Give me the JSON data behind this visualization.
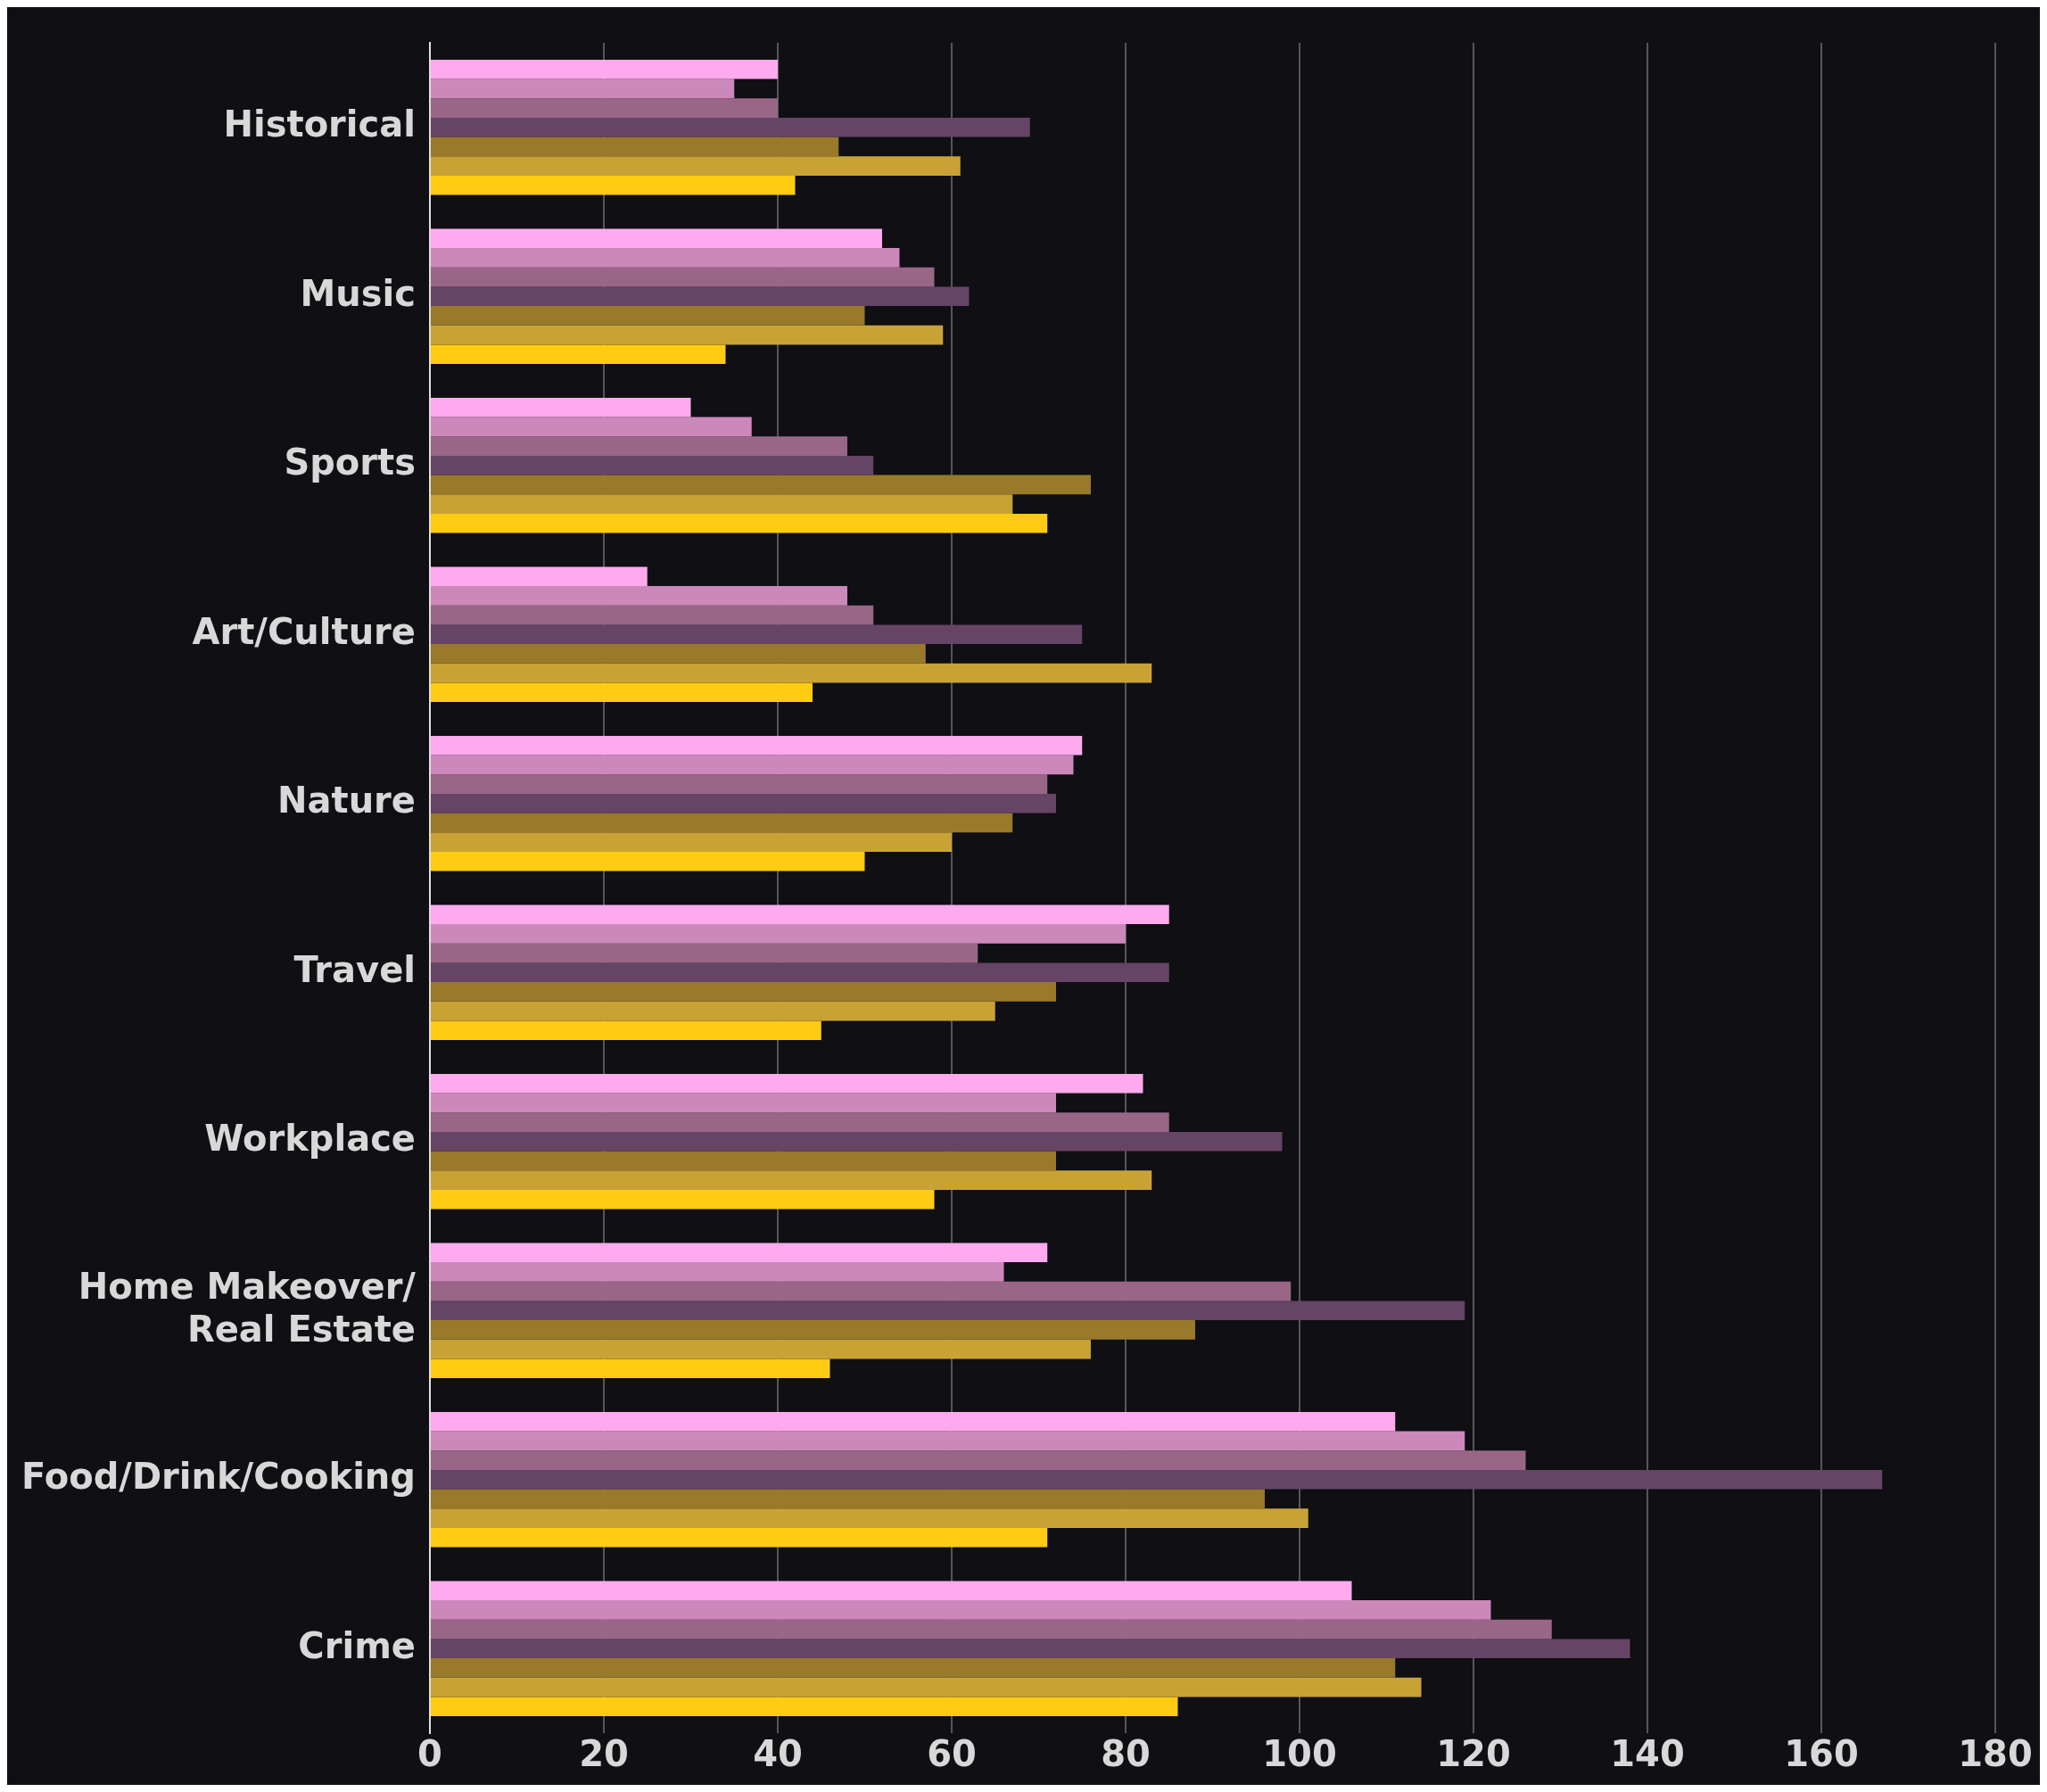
{
  "chart_data": {
    "type": "bar",
    "orientation": "horizontal",
    "categories": [
      "Historical",
      "Music",
      "Sports",
      "Art/Culture",
      "Nature",
      "Travel",
      "Workplace",
      "Home Makeover/ Real Estate",
      "Food/Drink/Cooking",
      "Crime"
    ],
    "series": [
      {
        "color": "#ffaaee",
        "values": [
          40,
          52,
          30,
          25,
          75,
          85,
          82,
          71,
          111,
          106
        ]
      },
      {
        "color": "#cc88bb",
        "values": [
          35,
          54,
          37,
          48,
          74,
          80,
          72,
          66,
          119,
          122
        ]
      },
      {
        "color": "#996688",
        "values": [
          40,
          58,
          48,
          51,
          71,
          63,
          85,
          99,
          126,
          129
        ]
      },
      {
        "color": "#664466",
        "values": [
          69,
          62,
          51,
          75,
          72,
          85,
          98,
          119,
          167,
          138
        ]
      },
      {
        "color": "#997a2a",
        "values": [
          47,
          50,
          76,
          57,
          67,
          72,
          72,
          88,
          96,
          111
        ]
      },
      {
        "color": "#c9a236",
        "values": [
          61,
          59,
          67,
          83,
          60,
          65,
          83,
          76,
          101,
          114
        ]
      },
      {
        "color": "#ffcc11",
        "values": [
          42,
          34,
          71,
          44,
          50,
          45,
          58,
          46,
          71,
          86
        ]
      }
    ],
    "xlim": [
      0,
      180
    ],
    "xticks": [
      0,
      20,
      40,
      60,
      80,
      100,
      120,
      140,
      160,
      180
    ],
    "grid": "x"
  }
}
